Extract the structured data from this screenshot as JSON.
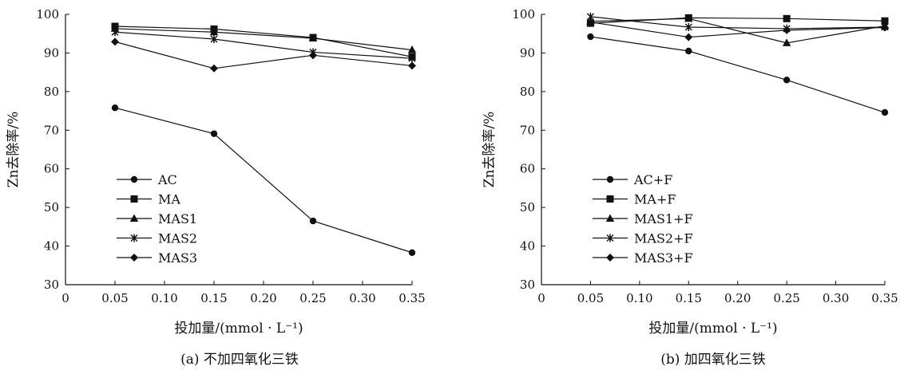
{
  "figure": {
    "caption_a": "(a) 不加四氧化三铁",
    "caption_b": "(b) 加四氧化三铁"
  },
  "chart_data": [
    {
      "type": "line",
      "title": "",
      "xlabel": "投加量/(mmol · L⁻¹)",
      "ylabel": "Zn去除率/%",
      "xlim": [
        0,
        0.35
      ],
      "ylim": [
        30,
        100
      ],
      "xticks": [
        "0",
        "0.05",
        "0.10",
        "0.15",
        "0.20",
        "0.25",
        "0.30",
        "0.35"
      ],
      "yticks": [
        "30",
        "40",
        "50",
        "60",
        "70",
        "80",
        "90",
        "100"
      ],
      "x": [
        0.05,
        0.15,
        0.25,
        0.35
      ],
      "legend_position": "lower-left",
      "grid": false,
      "series": [
        {
          "name": "AC",
          "marker": "circle",
          "values": [
            75.8,
            69.1,
            46.5,
            38.3
          ]
        },
        {
          "name": "MA",
          "marker": "square",
          "values": [
            96.9,
            96.2,
            94.0,
            89.0
          ]
        },
        {
          "name": "MAS1",
          "marker": "triangle",
          "values": [
            96.3,
            95.4,
            93.8,
            90.8
          ]
        },
        {
          "name": "MAS2",
          "marker": "x",
          "values": [
            95.4,
            93.6,
            90.2,
            88.6
          ]
        },
        {
          "name": "MAS3",
          "marker": "diamond",
          "values": [
            92.9,
            86.0,
            89.4,
            86.7
          ]
        }
      ]
    },
    {
      "type": "line",
      "title": "",
      "xlabel": "投加量/(mmol · L⁻¹)",
      "ylabel": "Zn去除率/%",
      "xlim": [
        0,
        0.35
      ],
      "ylim": [
        30,
        100
      ],
      "xticks": [
        "0",
        "0.05",
        "0.10",
        "0.15",
        "0.20",
        "0.25",
        "0.30",
        "0.35"
      ],
      "yticks": [
        "30",
        "40",
        "50",
        "60",
        "70",
        "80",
        "90",
        "100"
      ],
      "x": [
        0.05,
        0.15,
        0.25,
        0.35
      ],
      "legend_position": "lower-left",
      "grid": false,
      "series": [
        {
          "name": "AC+F",
          "marker": "circle",
          "values": [
            94.2,
            90.5,
            83.0,
            74.6
          ]
        },
        {
          "name": "MA+F",
          "marker": "square",
          "values": [
            97.7,
            99.1,
            98.9,
            98.3
          ]
        },
        {
          "name": "MAS1+F",
          "marker": "triangle",
          "values": [
            98.2,
            98.9,
            92.6,
            97.0
          ]
        },
        {
          "name": "MAS2+F",
          "marker": "x",
          "values": [
            99.4,
            96.7,
            96.3,
            96.7
          ]
        },
        {
          "name": "MAS3+F",
          "marker": "diamond",
          "values": [
            98.0,
            94.1,
            95.9,
            96.6
          ]
        }
      ]
    }
  ]
}
